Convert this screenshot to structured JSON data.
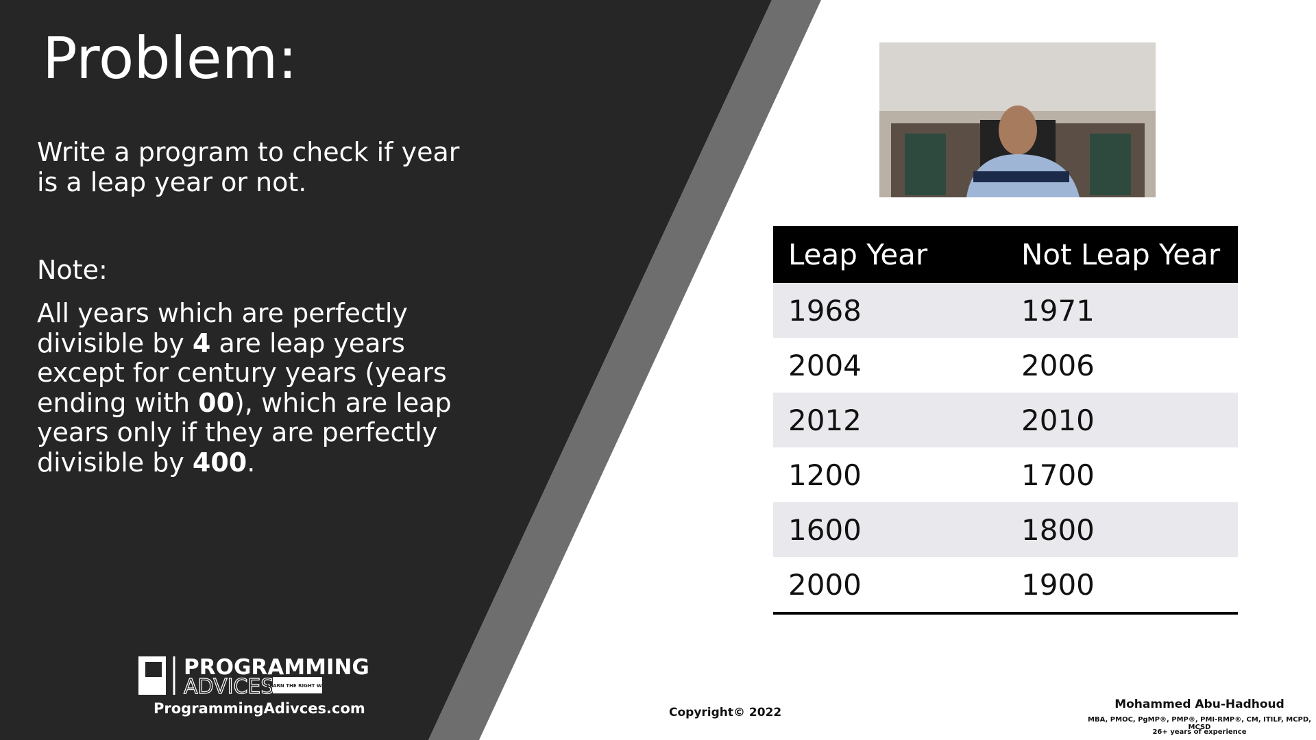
{
  "slide": {
    "title": "Problem:",
    "problem": "Write a program to check if year is a leap year or not.",
    "note_label": "Note:",
    "note_parts": [
      "All years which are perfectly divisible by ",
      "4",
      " are leap years except for century years (years ending with ",
      "00",
      "), which are leap years only if they are perfectly divisible by ",
      "400",
      "."
    ],
    "logo": {
      "line1": "PROGRAMMING",
      "line2": "ADVICES",
      "tagline": "LEARN THE RIGHT WAY",
      "url": "ProgrammingAdivces.com"
    },
    "copyright": "Copyright© 2022",
    "author": {
      "name": "Mohammed Abu-Hadhoud",
      "credentials": "MBA, PMOC, PgMP®, PMP®, PMI-RMP®, CM, ITILF, MCPD, MCSD",
      "experience": "26+ years of experience"
    }
  },
  "table": {
    "header": [
      "Leap Year",
      "Not Leap Year"
    ],
    "rows": [
      [
        1968,
        1971
      ],
      [
        2004,
        2006
      ],
      [
        2012,
        2010
      ],
      [
        1200,
        1700
      ],
      [
        1600,
        1800
      ],
      [
        2000,
        1900
      ]
    ]
  }
}
